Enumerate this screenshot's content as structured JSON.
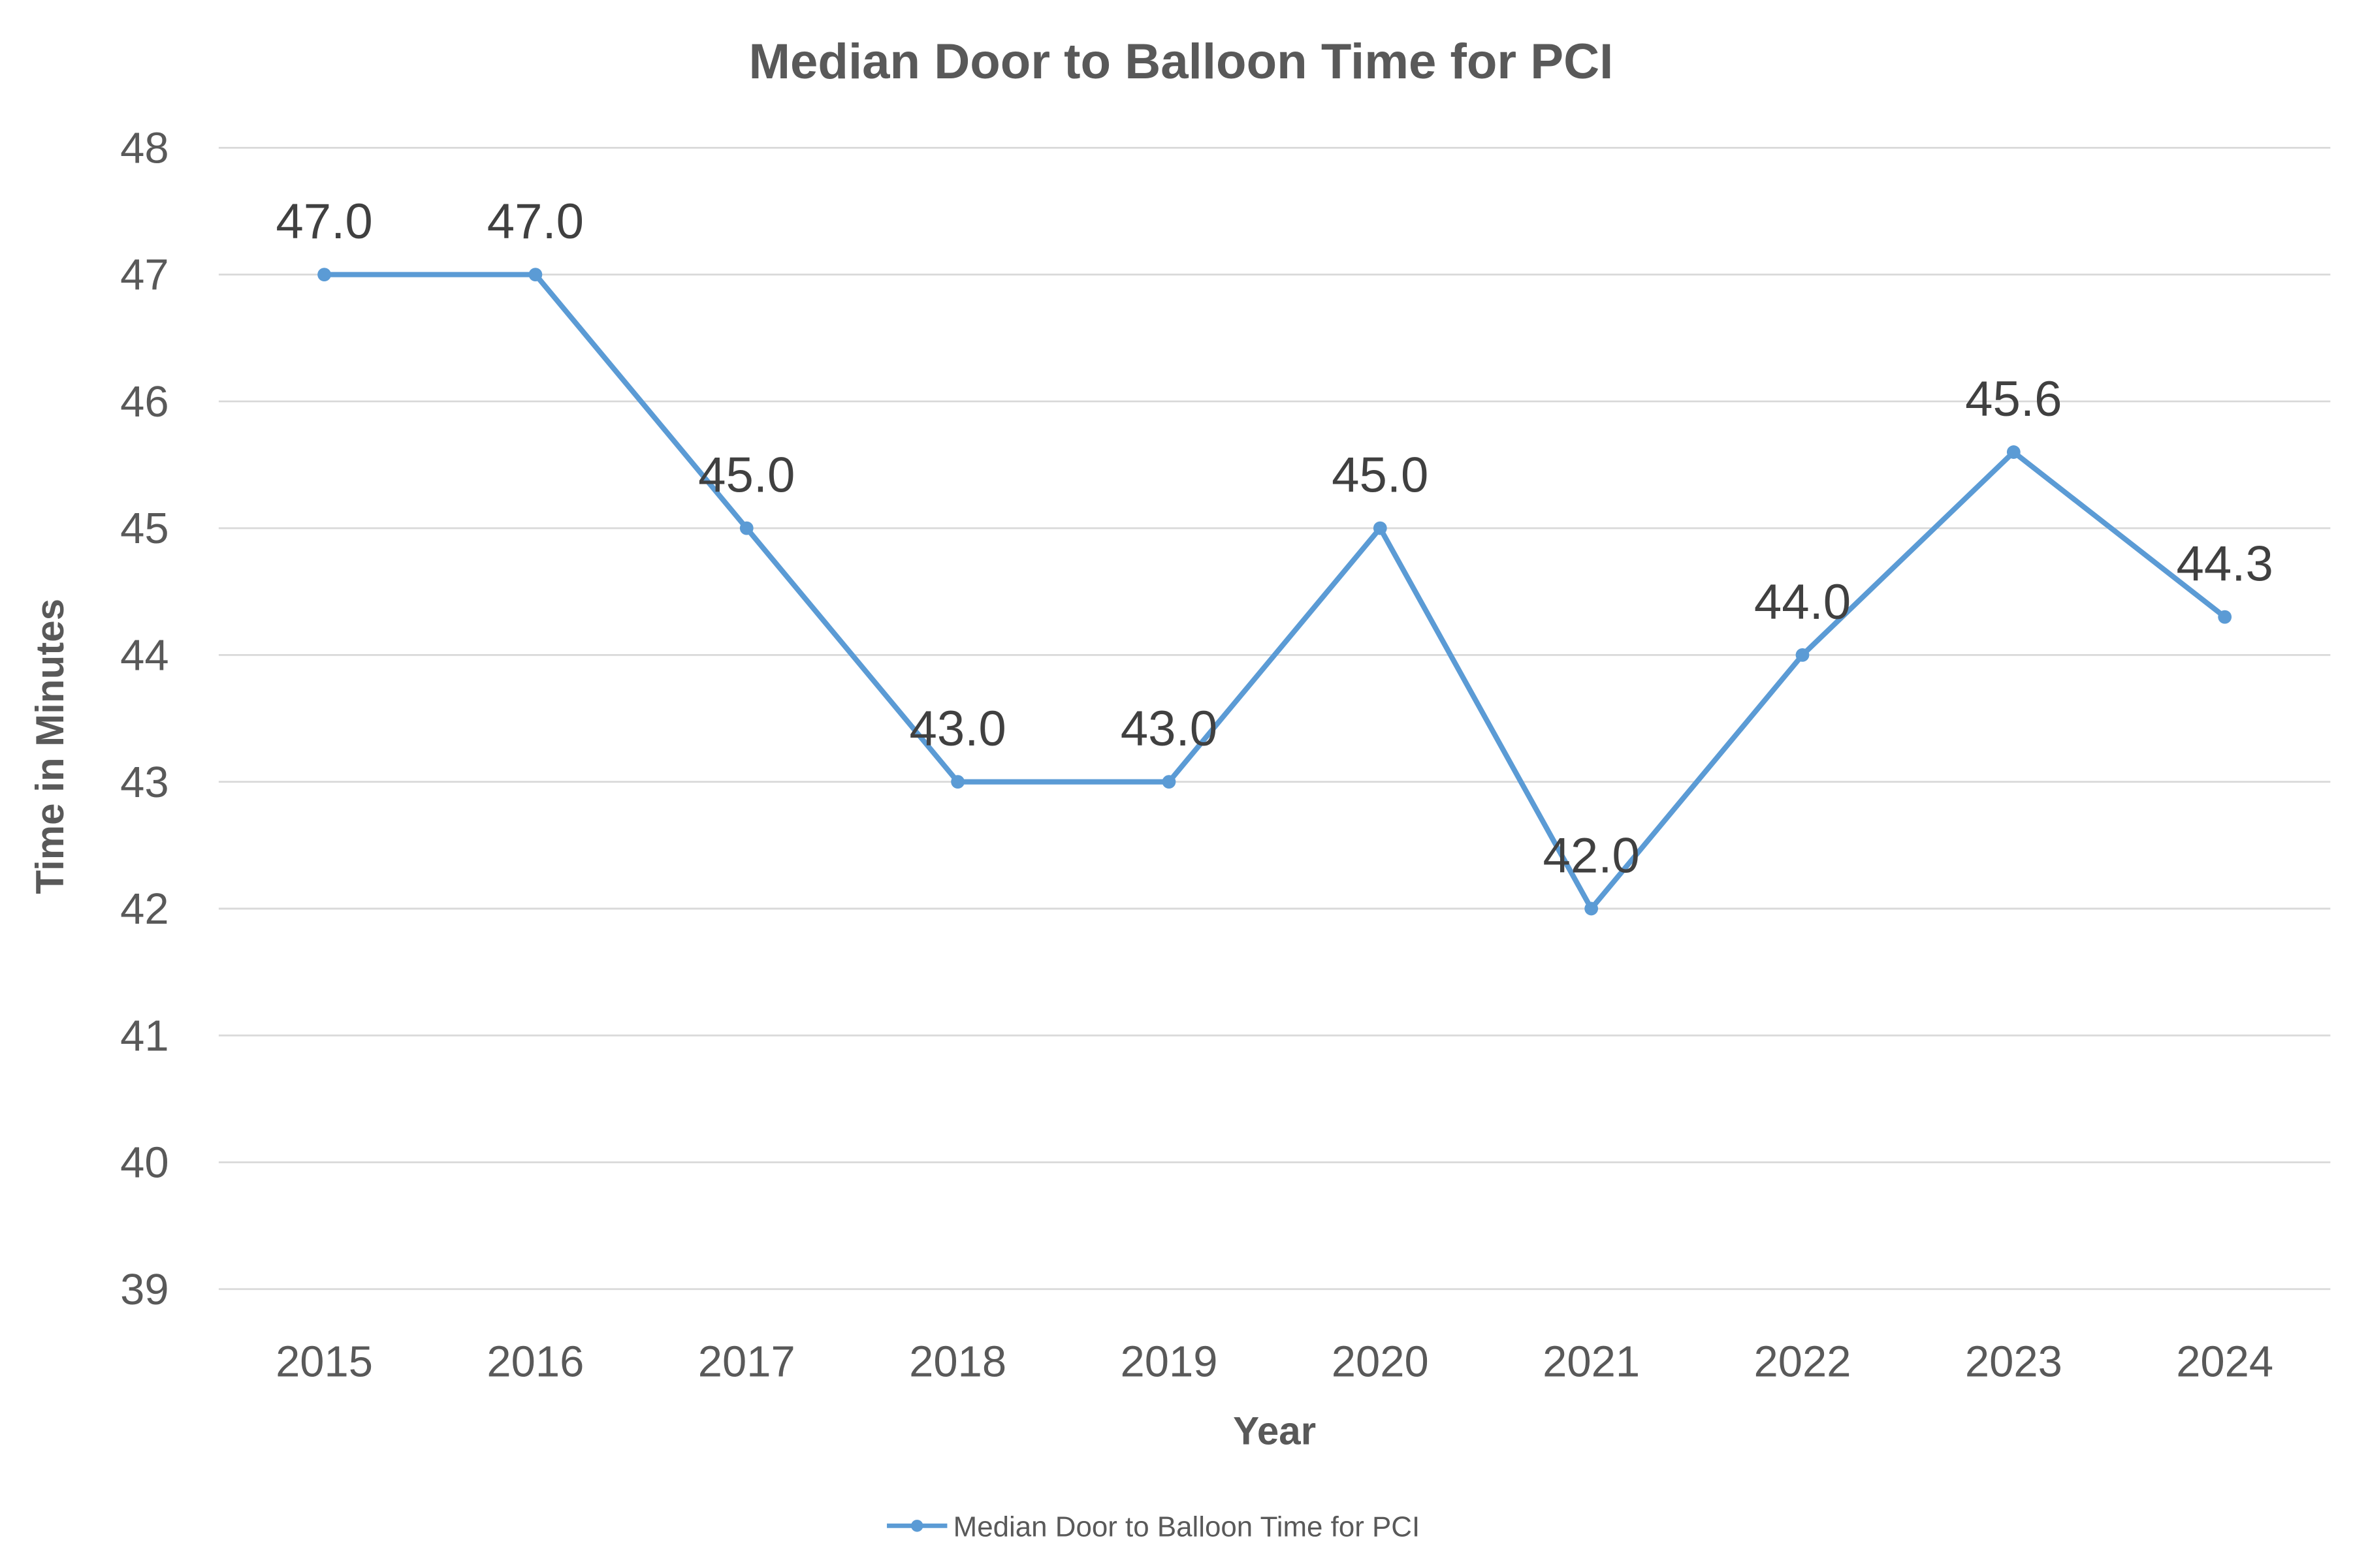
{
  "chart_data": {
    "type": "line",
    "title": "Median Door to Balloon Time for PCI",
    "xlabel": "Year",
    "ylabel": "Time in Minutes",
    "ylim": [
      39,
      48
    ],
    "yticks": [
      39,
      40,
      41,
      42,
      43,
      44,
      45,
      46,
      47,
      48
    ],
    "grid": true,
    "legend_position": "bottom",
    "categories": [
      "2015",
      "2016",
      "2017",
      "2018",
      "2019",
      "2020",
      "2021",
      "2022",
      "2023",
      "2024"
    ],
    "series": [
      {
        "name": "Median Door to Balloon Time for PCI",
        "color": "#5b9bd5",
        "values": [
          47.0,
          47.0,
          45.0,
          43.0,
          43.0,
          45.0,
          42.0,
          44.0,
          45.6,
          44.3
        ],
        "data_labels": [
          "47.0",
          "47.0",
          "45.0",
          "43.0",
          "43.0",
          "45.0",
          "42.0",
          "44.0",
          "45.6",
          "44.3"
        ]
      }
    ]
  }
}
